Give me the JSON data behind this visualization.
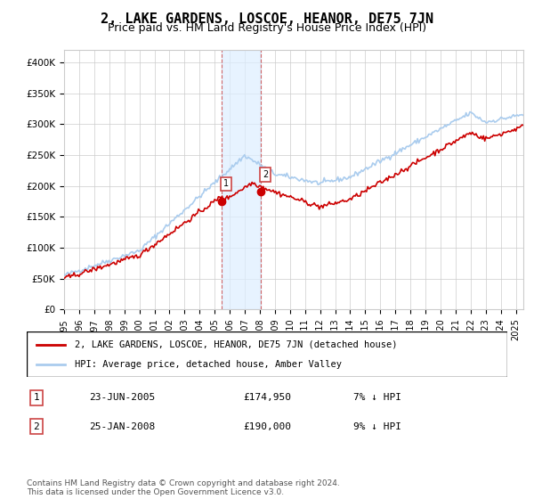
{
  "title": "2, LAKE GARDENS, LOSCOE, HEANOR, DE75 7JN",
  "subtitle": "Price paid vs. HM Land Registry's House Price Index (HPI)",
  "title_fontsize": 11,
  "subtitle_fontsize": 9,
  "ylabel_ticks": [
    "£0",
    "£50K",
    "£100K",
    "£150K",
    "£200K",
    "£250K",
    "£300K",
    "£350K",
    "£400K"
  ],
  "ytick_values": [
    0,
    50000,
    100000,
    150000,
    200000,
    250000,
    300000,
    350000,
    400000
  ],
  "ylim": [
    0,
    420000
  ],
  "xlim_start": 1995.0,
  "xlim_end": 2025.5,
  "sale1_date": 2005.48,
  "sale1_price": 174950,
  "sale1_label": "1",
  "sale2_date": 2008.07,
  "sale2_price": 190000,
  "sale2_label": "2",
  "hpi_color": "#aaccee",
  "price_color": "#cc0000",
  "sale_marker_color": "#cc0000",
  "shading_color": "#ddeeff",
  "legend_line1": "2, LAKE GARDENS, LOSCOE, HEANOR, DE75 7JN (detached house)",
  "legend_line2": "HPI: Average price, detached house, Amber Valley",
  "table_row1": [
    "1",
    "23-JUN-2005",
    "£174,950",
    "7% ↓ HPI"
  ],
  "table_row2": [
    "2",
    "25-JAN-2008",
    "£190,000",
    "9% ↓ HPI"
  ],
  "footer": "Contains HM Land Registry data © Crown copyright and database right 2024.\nThis data is licensed under the Open Government Licence v3.0.",
  "xtick_years": [
    1995,
    1996,
    1997,
    1998,
    1999,
    2000,
    2001,
    2002,
    2003,
    2004,
    2005,
    2006,
    2007,
    2008,
    2009,
    2010,
    2011,
    2012,
    2013,
    2014,
    2015,
    2016,
    2017,
    2018,
    2019,
    2020,
    2021,
    2022,
    2023,
    2024,
    2025
  ]
}
